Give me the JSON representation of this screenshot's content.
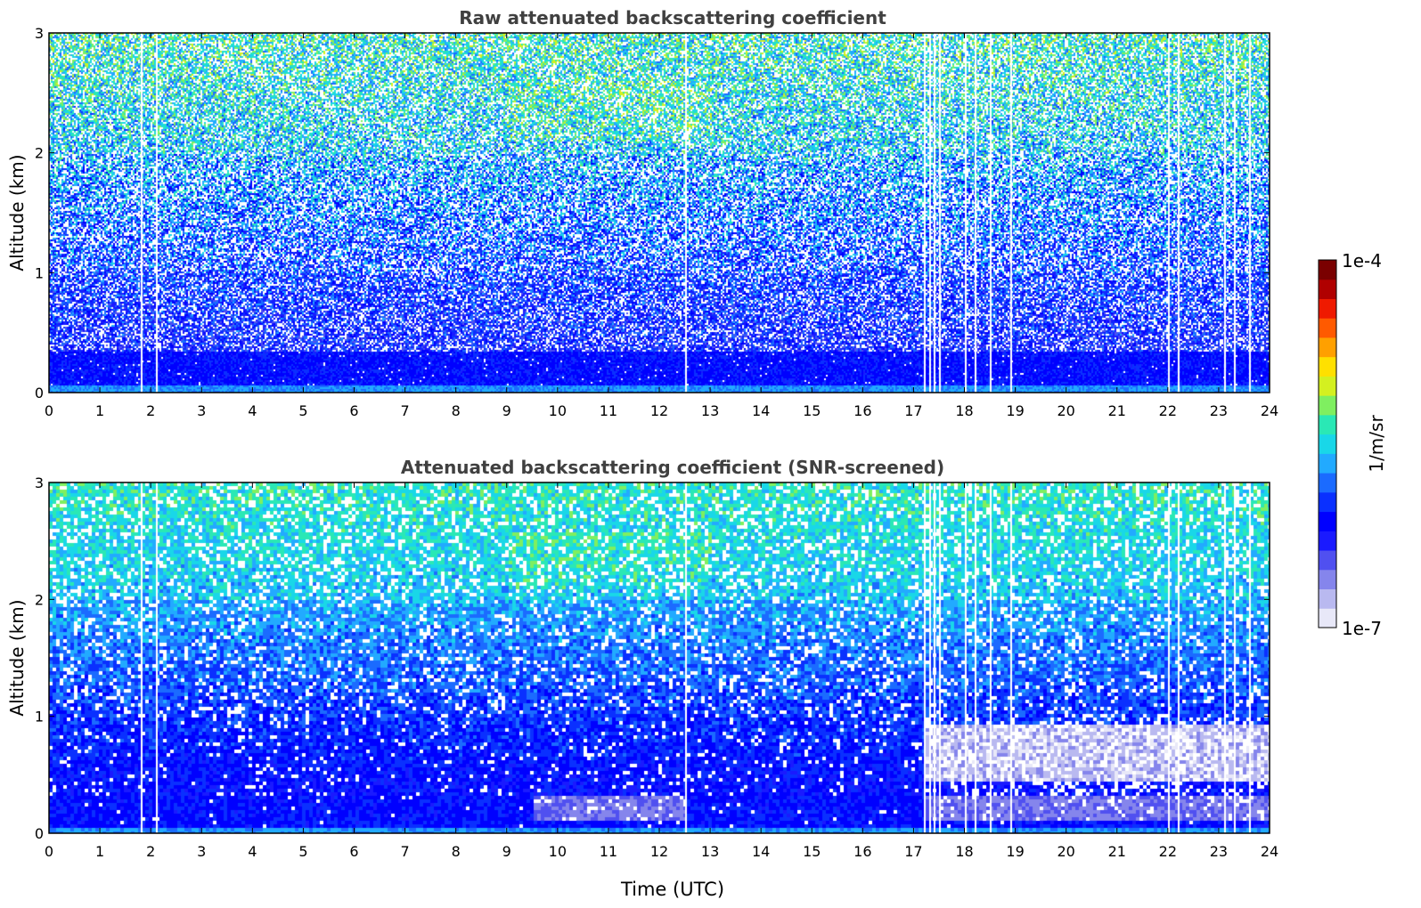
{
  "chart_data": [
    {
      "type": "heatmap",
      "title": "Raw attenuated backscattering coefficient",
      "xlabel": "",
      "ylabel": "Altitude (km)",
      "xlim": [
        0,
        24
      ],
      "ylim": [
        0,
        3
      ],
      "x_ticks": [
        "0",
        "1",
        "2",
        "3",
        "4",
        "5",
        "6",
        "7",
        "8",
        "9",
        "10",
        "11",
        "12",
        "13",
        "14",
        "15",
        "16",
        "17",
        "18",
        "19",
        "20",
        "21",
        "22",
        "23",
        "24"
      ],
      "y_ticks": [
        "0",
        "1",
        "2",
        "3"
      ],
      "missing_data_times_utc": [
        1.8,
        2.1,
        12.5,
        17.2,
        17.3,
        17.4,
        17.5,
        18.0,
        18.2,
        18.5,
        18.9,
        22.0,
        22.2,
        23.1,
        23.3,
        23.6
      ],
      "near_surface_enhanced_layer": {
        "altitude_km": [
          0.0,
          0.35
        ],
        "level": "high"
      },
      "noise_level": "high"
    },
    {
      "type": "heatmap",
      "title": "Attenuated backscattering coefficient (SNR-screened)",
      "xlabel": "Time (UTC)",
      "ylabel": "Altitude (km)",
      "xlim": [
        0,
        24
      ],
      "ylim": [
        0,
        3
      ],
      "x_ticks": [
        "0",
        "1",
        "2",
        "3",
        "4",
        "5",
        "6",
        "7",
        "8",
        "9",
        "10",
        "11",
        "12",
        "13",
        "14",
        "15",
        "16",
        "17",
        "18",
        "19",
        "20",
        "21",
        "22",
        "23",
        "24"
      ],
      "y_ticks": [
        "0",
        "1",
        "2",
        "3"
      ],
      "missing_data_times_utc": [
        1.8,
        2.1,
        12.5,
        17.2,
        17.3,
        17.4,
        17.5,
        18.0,
        18.2,
        18.5,
        18.9,
        22.0,
        22.2,
        23.1,
        23.3,
        23.6
      ],
      "near_surface_enhanced_layer": {
        "altitude_km": [
          0.0,
          0.5
        ],
        "level": "high"
      },
      "noise_level": "low"
    }
  ],
  "colorbar": {
    "label": "1/m/sr",
    "max_label": "1e-4",
    "min_label": "1e-7",
    "scale": "log",
    "colors": [
      "#e8e8f8",
      "#b9b9f0",
      "#8585ec",
      "#5050f0",
      "#1a1aff",
      "#0000ff",
      "#0a30ff",
      "#1b6bff",
      "#22aaff",
      "#19d7e8",
      "#2ae8b5",
      "#7fef60",
      "#d4f020",
      "#ffe000",
      "#ffa000",
      "#ff5a00",
      "#ef1a00",
      "#b00000",
      "#7a0000"
    ]
  }
}
